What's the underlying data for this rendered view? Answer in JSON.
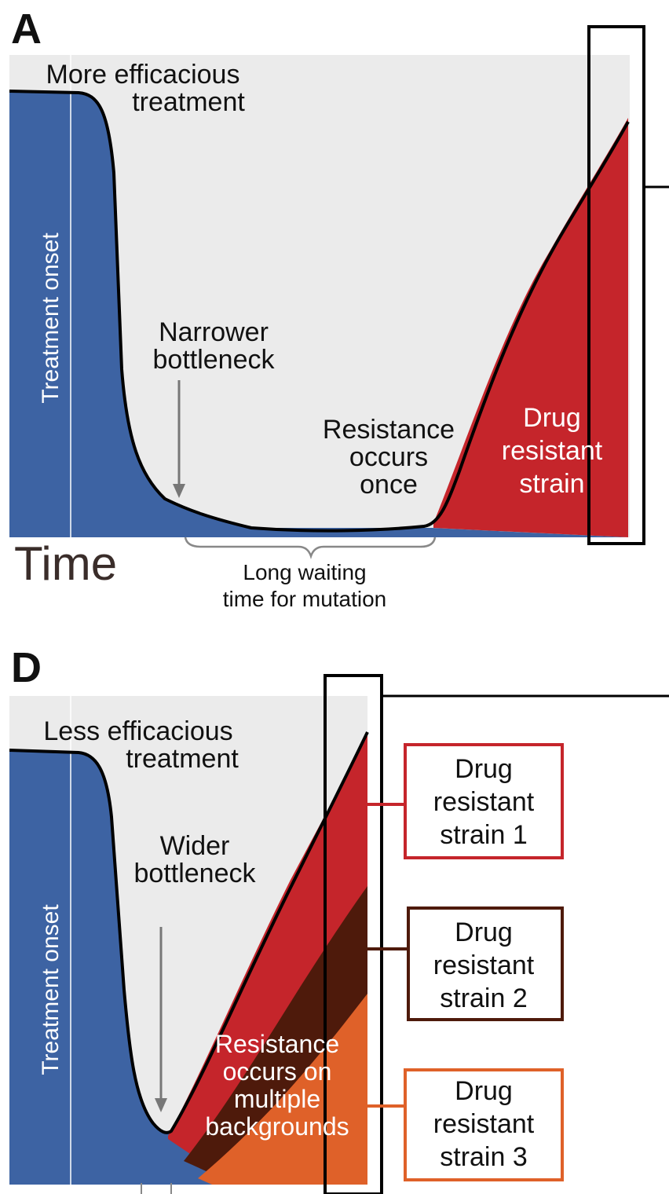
{
  "colors": {
    "background_panel": "#ebebeb",
    "susceptible": "#3d63a3",
    "resistant_1": "#c5252b",
    "resistant_2": "#4e1a0b",
    "resistant_3": "#df6129",
    "curve": "#000000",
    "arrow": "#777777"
  },
  "panel_a": {
    "letter": "A",
    "treatment_label_line1": "More efficacious",
    "treatment_label_line2": "treatment",
    "onset_label": "Treatment onset",
    "bottleneck_line1": "Narrower",
    "bottleneck_line2": "bottleneck",
    "resistance_line1": "Resistance",
    "resistance_line2": "occurs",
    "resistance_line3": "once",
    "strain_line1": "Drug",
    "strain_line2": "resistant",
    "strain_line3": "strain",
    "time_axis_label": "Time",
    "waiting_line1": "Long waiting",
    "waiting_line2": "time for mutation"
  },
  "panel_d": {
    "letter": "D",
    "treatment_label_line1": "Less efficacious",
    "treatment_label_line2": "treatment",
    "onset_label": "Treatment onset",
    "bottleneck_line1": "Wider",
    "bottleneck_line2": "bottleneck",
    "resistance_line1": "Resistance",
    "resistance_line2": "occurs on",
    "resistance_line3": "multiple",
    "resistance_line4": "backgrounds",
    "strains": [
      {
        "line1": "Drug",
        "line2": "resistant",
        "line3": "strain 1"
      },
      {
        "line1": "Drug",
        "line2": "resistant",
        "line3": "strain 2"
      },
      {
        "line1": "Drug",
        "line2": "resistant",
        "line3": "strain 3"
      }
    ]
  }
}
